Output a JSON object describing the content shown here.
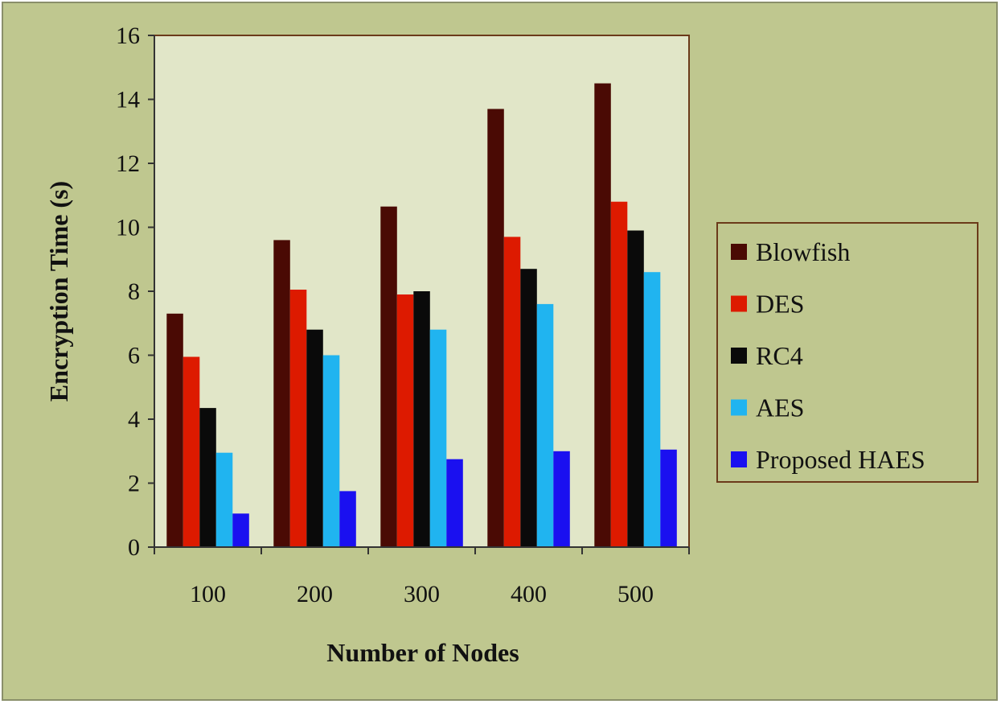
{
  "chart_data": {
    "type": "bar",
    "title": "",
    "xlabel": "Number of Nodes",
    "ylabel": "Encryption Time (s)",
    "categories": [
      "100",
      "200",
      "300",
      "400",
      "500"
    ],
    "ylim": [
      0,
      16
    ],
    "yticks": [
      0,
      2,
      4,
      6,
      8,
      10,
      12,
      14,
      16
    ],
    "grid": false,
    "legend_position": "right",
    "series": [
      {
        "name": "Blowfish",
        "color": "#4a0a04",
        "values": [
          7.3,
          9.6,
          10.65,
          13.7,
          14.5
        ]
      },
      {
        "name": "DES",
        "color": "#dd1a00",
        "values": [
          5.95,
          8.05,
          7.9,
          9.7,
          10.8
        ]
      },
      {
        "name": "RC4",
        "color": "#0a0a0a",
        "values": [
          4.35,
          6.8,
          8.0,
          8.7,
          9.9
        ]
      },
      {
        "name": "AES",
        "color": "#20b4f0",
        "values": [
          2.95,
          6.0,
          6.8,
          7.6,
          8.6
        ]
      },
      {
        "name": "Proposed HAES",
        "color": "#1a10f0",
        "values": [
          1.05,
          1.75,
          2.75,
          3.0,
          3.05
        ]
      }
    ],
    "colors": {
      "background": "#bfc78f",
      "plot_area": "#e1e6c8",
      "frame": "#6b3a1a"
    }
  }
}
